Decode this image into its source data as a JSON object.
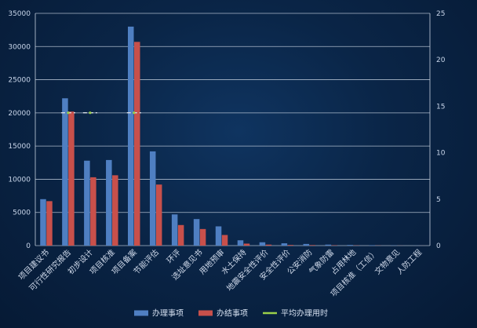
{
  "chart_data": {
    "type": "bar",
    "categories": [
      "项目建议书",
      "可行性研究报告",
      "初步设计",
      "项目核准",
      "项目备案",
      "节能评估",
      "环评",
      "选址意见书",
      "用地预审",
      "水土保持",
      "地震安全性评价",
      "安全性评价",
      "公安消防",
      "气象防雷",
      "占用林地",
      "项目核准（工信）",
      "文物意见",
      "人防工程"
    ],
    "series": [
      {
        "name": "办理事项",
        "axis": "left",
        "color": "#4f7fc2",
        "values": [
          7000,
          22200,
          12800,
          12900,
          33000,
          14200,
          4700,
          4000,
          2900,
          800,
          500,
          350,
          250,
          150,
          100,
          60,
          30,
          10
        ]
      },
      {
        "name": "办结事项",
        "axis": "left",
        "color": "#c8504b",
        "values": [
          6700,
          20200,
          10300,
          10600,
          30700,
          9200,
          3100,
          2500,
          1600,
          300,
          150,
          100,
          80,
          50,
          30,
          20,
          10,
          5
        ]
      },
      {
        "name": "平均办理用时",
        "axis": "right",
        "type": "line",
        "color": "#9bd04a",
        "values": [
          null,
          14.3,
          14.3,
          null,
          14.3,
          null,
          null,
          null,
          null,
          null,
          null,
          null,
          null,
          null,
          null,
          null,
          null,
          null
        ]
      }
    ],
    "y_left": {
      "min": 0,
      "max": 35000,
      "ticks": [
        0,
        5000,
        10000,
        15000,
        20000,
        25000,
        30000,
        35000
      ]
    },
    "y_right": {
      "min": 0,
      "max": 25,
      "ticks": [
        0,
        5,
        10,
        15,
        20,
        25
      ]
    },
    "legend_position": "bottom-center",
    "grid": true
  },
  "colors": {
    "grid": "#c8d2e0",
    "axis_text": "#c9d6ea"
  }
}
